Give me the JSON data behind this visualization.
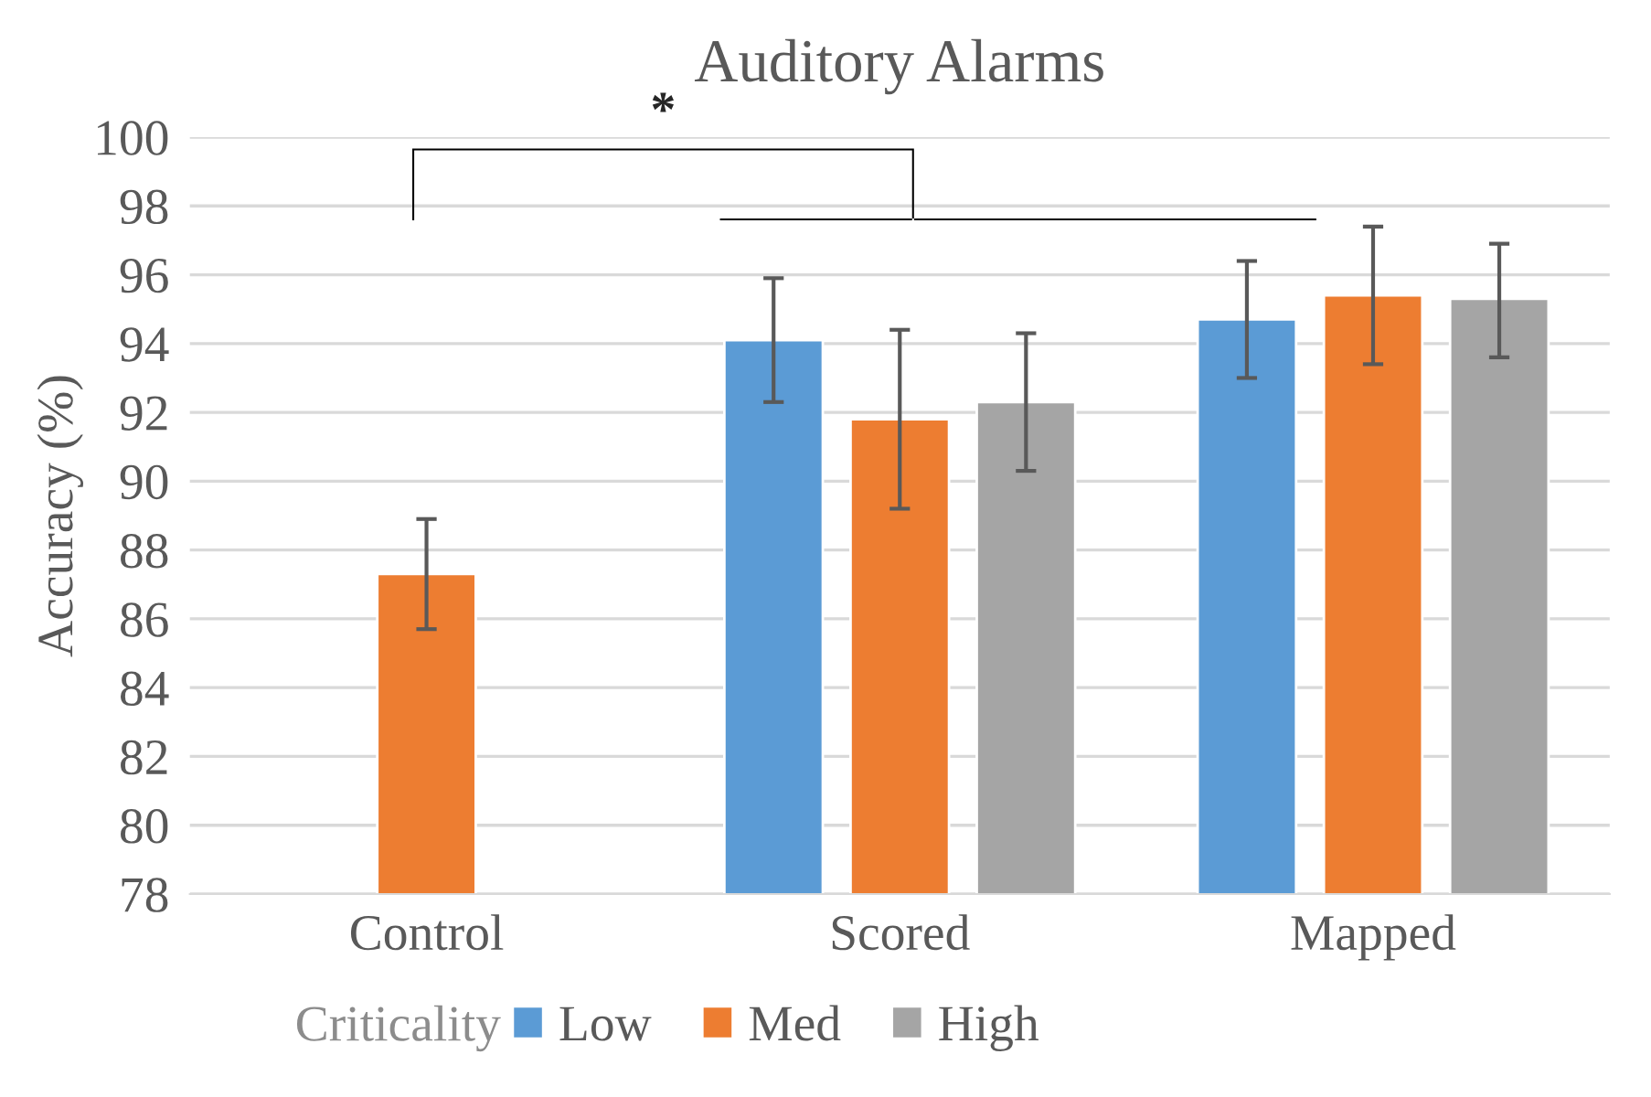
{
  "chart_data": {
    "type": "bar",
    "title": "Auditory Alarms",
    "ylabel": "Accuracy (%)",
    "legend_title": "Criticality",
    "categories": [
      "Control",
      "Scored",
      "Mapped"
    ],
    "series": [
      {
        "name": "Low",
        "color": "#5b9bd5",
        "values": [
          null,
          94.1,
          94.7
        ],
        "errors": [
          null,
          [
            92.3,
            95.9
          ],
          [
            93.0,
            96.4
          ]
        ]
      },
      {
        "name": "Med",
        "color": "#ed7d31",
        "values": [
          87.3,
          91.8,
          95.4
        ],
        "errors": [
          [
            85.7,
            88.9
          ],
          [
            89.2,
            94.4
          ],
          [
            93.4,
            97.4
          ]
        ]
      },
      {
        "name": "High",
        "color": "#a5a5a5",
        "values": [
          null,
          92.3,
          95.3
        ],
        "errors": [
          null,
          [
            90.3,
            94.3
          ],
          [
            93.6,
            96.9
          ]
        ]
      }
    ],
    "ylim": [
      78,
      100
    ],
    "yticks": [
      78,
      80,
      82,
      84,
      86,
      88,
      90,
      92,
      94,
      96,
      98,
      100
    ],
    "grid": "y",
    "legend": "bottom",
    "annotations": [
      "*"
    ]
  }
}
